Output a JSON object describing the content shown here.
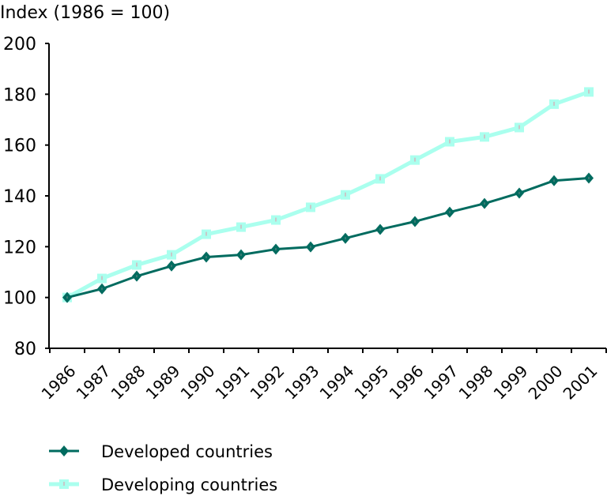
{
  "chart_data": {
    "type": "line",
    "title": "",
    "ylabel": "Index (1986 = 100)",
    "xlabel": "",
    "ylim": [
      80,
      200
    ],
    "yticks": [
      80,
      100,
      120,
      140,
      160,
      180,
      200
    ],
    "ytick_labels": [
      "80",
      "100",
      "120",
      "140",
      "160",
      "180",
      "200"
    ],
    "categories": [
      "1986",
      "1987",
      "1988",
      "1989",
      "1990",
      "1991",
      "1992",
      "1993",
      "1994",
      "1995",
      "1996",
      "1997",
      "1998",
      "1999",
      "2000",
      "2001"
    ],
    "grid": false,
    "legend_position": "bottom-left",
    "series": [
      {
        "name": "Developed countries",
        "color": "#006b5f",
        "marker": "diamond",
        "values": [
          100,
          103.4,
          108.4,
          112.4,
          115.9,
          116.8,
          119.0,
          119.9,
          123.3,
          126.8,
          129.9,
          133.6,
          137.0,
          141.1,
          146.0,
          147.0
        ]
      },
      {
        "name": "Developing countries",
        "color": "#aaffee",
        "marker": "square",
        "values": [
          100,
          107.5,
          112.8,
          116.8,
          124.9,
          127.7,
          130.5,
          135.5,
          140.4,
          146.7,
          154.1,
          161.3,
          163.2,
          166.9,
          176.1,
          180.9
        ]
      }
    ]
  }
}
